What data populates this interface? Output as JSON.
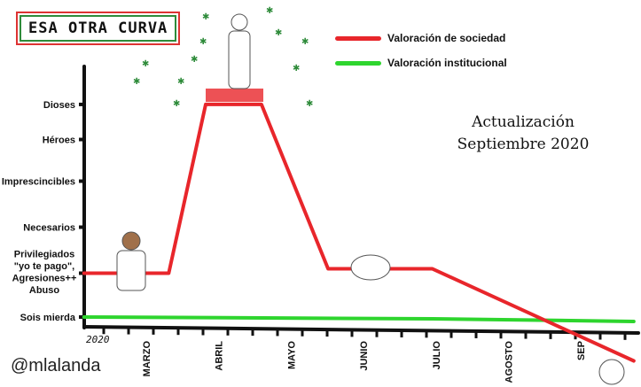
{
  "title": "ESA OTRA CURVA",
  "update_text": [
    "Actualización",
    "Septiembre 2020"
  ],
  "handle": "@mlalanda",
  "chart_data": {
    "type": "line",
    "title": "ESA OTRA CURVA",
    "xlabel": "",
    "ylabel": "",
    "year_label": "2020",
    "x_tick_labels": [
      "MARZO",
      "ABRIL",
      "MAYO",
      "JUNIO",
      "JULIO",
      "AGOSTO",
      "SEP"
    ],
    "x_tick_values": [
      0,
      1,
      2,
      3,
      4,
      5,
      6
    ],
    "y_tick_labels": [
      "Sois mierda",
      "Privilegiados \"yo te pago\", Agresiones++ Abuso",
      "Necesarios",
      "Imprescincibles",
      "Héroes",
      "Dioses"
    ],
    "y_tick_values": [
      0,
      1,
      2.05,
      3.1,
      4.05,
      4.85
    ],
    "xlim": [
      -0.86,
      6.8
    ],
    "ylim": [
      -1.2,
      5.5
    ],
    "legend_position": "top-right",
    "series": [
      {
        "name": "Valoración de sociedad",
        "color": "#e8262b",
        "x": [
          -0.86,
          0.31,
          0.82,
          1.59,
          2.51,
          3.95,
          6.73
        ],
        "y": [
          1.0,
          1.0,
          4.85,
          4.85,
          1.1,
          1.1,
          -1.0
        ]
      },
      {
        "name": "Valoración institucional",
        "color": "#2ed52e",
        "x": [
          -0.86,
          3.95,
          6.73
        ],
        "y": [
          0.0,
          -0.04,
          -0.1
        ]
      }
    ]
  }
}
